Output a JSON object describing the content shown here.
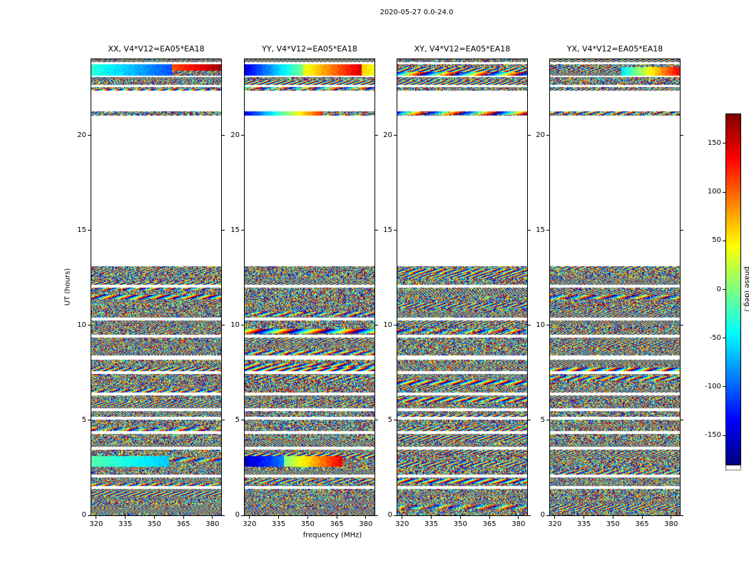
{
  "figure": {
    "title": "2020-05-27 0.0-24.0",
    "xlabel": "frequency (MHz)",
    "ylabel": "UT (hours)",
    "colorbar_label": "phase (deg.)",
    "background": "#ffffff"
  },
  "chart_data": {
    "type": "heatmap",
    "title": "2020-05-27 0.0-24.0",
    "xlabel": "frequency (MHz)",
    "ylabel": "UT (hours)",
    "colormap": "jet",
    "panels": [
      {
        "title": "XX, V4*V12=EA05*EA18",
        "polarization": "XX",
        "baseline": "V4*V12=EA05*EA18"
      },
      {
        "title": "YY, V4*V12=EA05*EA18",
        "polarization": "YY",
        "baseline": "V4*V12=EA05*EA18"
      },
      {
        "title": "XY, V4*V12=EA05*EA18",
        "polarization": "XY",
        "baseline": "V4*V12=EA05*EA18"
      },
      {
        "title": "YX, V4*V12=EA05*EA18",
        "polarization": "YX",
        "baseline": "V4*V12=EA05*EA18"
      }
    ],
    "x_axis": {
      "label": "frequency (MHz)",
      "range": [
        317.5,
        384.5
      ],
      "ticks": [
        320,
        335,
        350,
        365,
        380
      ]
    },
    "y_axis": {
      "label": "UT (hours)",
      "range": [
        0,
        24
      ],
      "ticks": [
        0,
        5,
        10,
        15,
        20
      ]
    },
    "colorbar": {
      "label": "phase (deg.)",
      "range": [
        -180,
        180
      ],
      "ticks": [
        150,
        100,
        50,
        0,
        -50,
        -100,
        -150
      ]
    },
    "value_description": "Visibility phase (degrees, -180..180) versus frequency and UT time; mostly pseudo-random speckle with interference-fringe patches and a few coherent smooth-gradient bands; white regions are times with no data.",
    "data_intervals_ut_hours": [
      [
        0.0,
        1.4
      ],
      [
        1.55,
        2.0
      ],
      [
        2.15,
        3.45
      ],
      [
        3.6,
        4.3
      ],
      [
        4.45,
        5.05
      ],
      [
        5.2,
        5.5
      ],
      [
        5.65,
        6.3
      ],
      [
        6.45,
        7.45
      ],
      [
        7.6,
        8.2
      ],
      [
        8.4,
        9.35
      ],
      [
        9.5,
        10.25
      ],
      [
        10.4,
        12.0
      ],
      [
        12.15,
        13.1
      ],
      [
        21.05,
        21.25
      ],
      [
        22.35,
        22.55
      ],
      [
        22.65,
        23.05
      ],
      [
        23.15,
        23.75
      ],
      [
        23.85,
        24.0
      ]
    ],
    "smooth_features": [
      {
        "panel": 0,
        "t": [
          23.15,
          23.75
        ],
        "x": [
          0.0,
          0.62
        ],
        "v": [
          0.42,
          0.2
        ]
      },
      {
        "panel": 0,
        "t": [
          23.4,
          23.75
        ],
        "x": [
          0.62,
          1.0
        ],
        "v": [
          0.8,
          0.97
        ]
      },
      {
        "panel": 1,
        "t": [
          23.15,
          23.75
        ],
        "x": [
          0.0,
          0.45
        ],
        "v": [
          0.1,
          0.5
        ]
      },
      {
        "panel": 1,
        "t": [
          23.15,
          23.75
        ],
        "x": [
          0.45,
          0.9
        ],
        "v": [
          0.6,
          0.92
        ]
      },
      {
        "panel": 1,
        "t": [
          23.15,
          23.75
        ],
        "x": [
          0.9,
          1.0
        ],
        "v": [
          0.68,
          0.6
        ]
      },
      {
        "panel": 3,
        "t": [
          23.15,
          23.6
        ],
        "x": [
          0.55,
          1.0
        ],
        "v": [
          0.35,
          0.9
        ]
      },
      {
        "panel": 0,
        "t": [
          2.55,
          3.1
        ],
        "x": [
          0.0,
          0.6
        ],
        "v": [
          0.46,
          0.32
        ]
      },
      {
        "panel": 1,
        "t": [
          2.55,
          3.1
        ],
        "x": [
          0.0,
          0.3
        ],
        "v": [
          0.06,
          0.25
        ]
      },
      {
        "panel": 1,
        "t": [
          2.55,
          3.1
        ],
        "x": [
          0.3,
          0.75
        ],
        "v": [
          0.5,
          0.9
        ]
      },
      {
        "panel": 1,
        "t": [
          21.05,
          21.25
        ],
        "x": [
          0.0,
          0.6
        ],
        "v": [
          0.1,
          0.85
        ]
      }
    ]
  }
}
